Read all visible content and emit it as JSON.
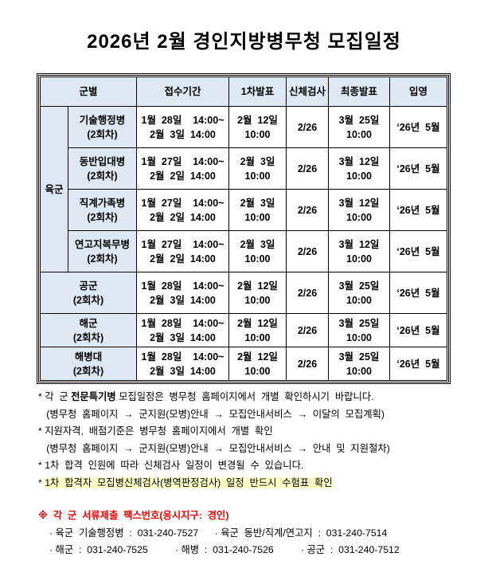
{
  "title": "2026년  2월  경인지방병무청  모집일정",
  "table": {
    "headers": [
      "군별",
      "접수기간",
      "1차발표",
      "신체검사",
      "최종발표",
      "입영"
    ],
    "army_label": "육군",
    "rows": [
      {
        "unit": "기술행정병",
        "round": "(2회차)",
        "period1": "1월  28일    14:00~",
        "period2": "2월  3일  14:00",
        "first1": "2월  12일",
        "first2": "10:00",
        "exam": "2/26",
        "final1": "3월  25일",
        "final2": "10:00",
        "enlist": "‘26년  5월"
      },
      {
        "unit": "동반입대병",
        "round": "(2회차)",
        "period1": "1월  27일    14:00~",
        "period2": "2월  2일  14:00",
        "first1": "2월  3일",
        "first2": "10:00",
        "exam": "2/26",
        "final1": "3월  12일",
        "final2": "10:00",
        "enlist": "‘26년  5월"
      },
      {
        "unit": "직계가족병",
        "round": "(2회차)",
        "period1": "1월  27일    14:00~",
        "period2": "2월  2일  14:00",
        "first1": "2월  3일",
        "first2": "10:00",
        "exam": "2/26",
        "final1": "3월  12일",
        "final2": "10:00",
        "enlist": "‘26년  5월"
      },
      {
        "unit": "연고지복무병",
        "round": "(2회차)",
        "period1": "1월  27일    14:00~",
        "period2": "2월  2일  14:00",
        "first1": "2월  3일",
        "first2": "10:00",
        "exam": "2/26",
        "final1": "3월  12일",
        "final2": "10:00",
        "enlist": "‘26년  5월"
      },
      {
        "unit": "공군",
        "round": "(2회차)",
        "period1": "1월  28일    14:00~",
        "period2": "2월  3일  14:00",
        "first1": "2월  12일",
        "first2": "10:00",
        "exam": "2/26",
        "final1": "3월  25일",
        "final2": "10:00",
        "enlist": "‘26년  5월"
      },
      {
        "unit": "해군",
        "round": "(2회차)",
        "period1": "1월  28일    14:00~",
        "period2": "2월  3일  14:00",
        "first1": "2월  12일",
        "first2": "10:00",
        "exam": "2/26",
        "final1": "3월  25일",
        "final2": "10:00",
        "enlist": "‘26년  5월"
      },
      {
        "unit": "해병대",
        "round": "(2회차)",
        "period1": "1월  28일    14:00~",
        "period2": "2월  3일  14:00",
        "first1": "2월  12일",
        "first2": "10:00",
        "exam": "2/26",
        "final1": "3월  25일",
        "final2": "10:00",
        "enlist": "‘26년  5월"
      }
    ]
  },
  "notes": {
    "n1a": "* 각  군 ",
    "n1b": "전문특기병",
    "n1c": " 모집일정은  병무청  홈페이지에서  개별  확인하시기  바랍니다.",
    "n2": "   (병무청  홈페이지  →  군지원(모병)안내  →  모집안내서비스  →  이달의  모집계획)",
    "n3": "* 지원자격,  배점기준은  병무청  홈페이지에서  개별  확인",
    "n4": "   (병무청  홈페이지  →  군지원(모병)안내  →  모집안내서비스  →  안내  및  지원절차)",
    "n5": "* 1차  합격  인원에  따라  신체검사  일정이  변경될  수  있습니다.",
    "n6a": "* ",
    "n6b": "1차  합격자  모집병신체검사(병역판정검사)  일정  반드시  수험표  확인"
  },
  "fax": {
    "heading": "※  각  군  서류제출  팩스번호(응시지구:  경인)",
    "line1": "· 육군  기술행정병  :  031-240-7527      · 육군  동반/직계/연고지  :  031-240-7514",
    "line2": "· 해군  :  031-240-7525          · 해병  :  031-240-7526          · 공군  :  031-240-7512"
  },
  "colors": {
    "header_bg": "#dde8f3",
    "highlight": "#ffffc8",
    "red": "#e00000"
  }
}
